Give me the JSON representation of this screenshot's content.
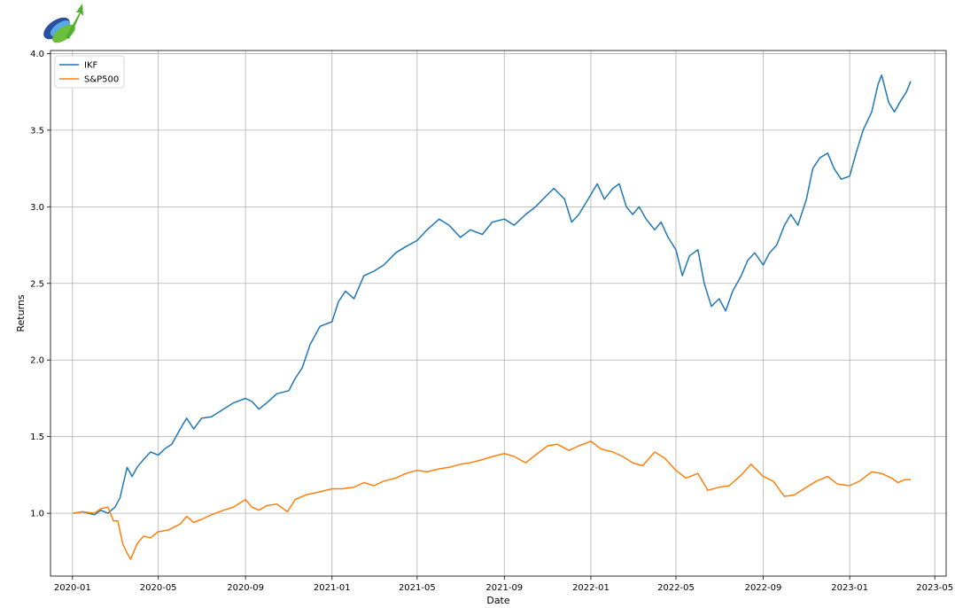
{
  "chart_data": {
    "type": "line",
    "xlabel": "Date",
    "ylabel": "Returns",
    "xlim": [
      "2019-12-01",
      "2023-05-17"
    ],
    "ylim": [
      0.59,
      4.02
    ],
    "x_ticks": [
      "2020-01",
      "2020-05",
      "2020-09",
      "2021-01",
      "2021-05",
      "2021-09",
      "2022-01",
      "2022-05",
      "2022-09",
      "2023-01",
      "2023-05"
    ],
    "y_ticks": [
      "1.0",
      "1.5",
      "2.0",
      "2.5",
      "3.0",
      "3.5",
      "4.0"
    ],
    "grid": true,
    "legend_position": "top-left",
    "series": [
      {
        "name": "IKF",
        "color": "#1f77b4",
        "points": [
          [
            "2020-01-02",
            1.0
          ],
          [
            "2020-01-15",
            1.01
          ],
          [
            "2020-02-01",
            0.99
          ],
          [
            "2020-02-10",
            1.02
          ],
          [
            "2020-02-20",
            1.0
          ],
          [
            "2020-03-01",
            1.04
          ],
          [
            "2020-03-08",
            1.1
          ],
          [
            "2020-03-12",
            1.18
          ],
          [
            "2020-03-18",
            1.3
          ],
          [
            "2020-03-25",
            1.24
          ],
          [
            "2020-04-01",
            1.3
          ],
          [
            "2020-04-10",
            1.35
          ],
          [
            "2020-04-20",
            1.4
          ],
          [
            "2020-05-01",
            1.38
          ],
          [
            "2020-05-10",
            1.42
          ],
          [
            "2020-05-20",
            1.45
          ],
          [
            "2020-06-01",
            1.55
          ],
          [
            "2020-06-10",
            1.62
          ],
          [
            "2020-06-20",
            1.55
          ],
          [
            "2020-07-01",
            1.62
          ],
          [
            "2020-07-15",
            1.63
          ],
          [
            "2020-08-01",
            1.68
          ],
          [
            "2020-08-15",
            1.72
          ],
          [
            "2020-09-01",
            1.75
          ],
          [
            "2020-09-10",
            1.73
          ],
          [
            "2020-09-20",
            1.68
          ],
          [
            "2020-10-01",
            1.72
          ],
          [
            "2020-10-15",
            1.78
          ],
          [
            "2020-11-01",
            1.8
          ],
          [
            "2020-11-10",
            1.88
          ],
          [
            "2020-11-20",
            1.95
          ],
          [
            "2020-12-01",
            2.1
          ],
          [
            "2020-12-15",
            2.22
          ],
          [
            "2021-01-01",
            2.25
          ],
          [
            "2021-01-10",
            2.38
          ],
          [
            "2021-01-20",
            2.45
          ],
          [
            "2021-02-01",
            2.4
          ],
          [
            "2021-02-15",
            2.55
          ],
          [
            "2021-03-01",
            2.58
          ],
          [
            "2021-03-15",
            2.62
          ],
          [
            "2021-04-01",
            2.7
          ],
          [
            "2021-04-15",
            2.74
          ],
          [
            "2021-05-01",
            2.78
          ],
          [
            "2021-05-15",
            2.85
          ],
          [
            "2021-06-01",
            2.92
          ],
          [
            "2021-06-15",
            2.88
          ],
          [
            "2021-07-01",
            2.8
          ],
          [
            "2021-07-15",
            2.85
          ],
          [
            "2021-08-01",
            2.82
          ],
          [
            "2021-08-15",
            2.9
          ],
          [
            "2021-09-01",
            2.92
          ],
          [
            "2021-09-15",
            2.88
          ],
          [
            "2021-10-01",
            2.95
          ],
          [
            "2021-10-15",
            3.0
          ],
          [
            "2021-11-01",
            3.08
          ],
          [
            "2021-11-10",
            3.12
          ],
          [
            "2021-11-25",
            3.05
          ],
          [
            "2021-12-05",
            2.9
          ],
          [
            "2021-12-15",
            2.95
          ],
          [
            "2022-01-01",
            3.08
          ],
          [
            "2022-01-10",
            3.15
          ],
          [
            "2022-01-20",
            3.05
          ],
          [
            "2022-02-01",
            3.12
          ],
          [
            "2022-02-10",
            3.15
          ],
          [
            "2022-02-20",
            3.0
          ],
          [
            "2022-03-01",
            2.95
          ],
          [
            "2022-03-10",
            3.0
          ],
          [
            "2022-03-20",
            2.92
          ],
          [
            "2022-04-01",
            2.85
          ],
          [
            "2022-04-10",
            2.9
          ],
          [
            "2022-04-20",
            2.8
          ],
          [
            "2022-05-01",
            2.72
          ],
          [
            "2022-05-10",
            2.55
          ],
          [
            "2022-05-20",
            2.68
          ],
          [
            "2022-06-01",
            2.72
          ],
          [
            "2022-06-10",
            2.5
          ],
          [
            "2022-06-20",
            2.35
          ],
          [
            "2022-07-01",
            2.4
          ],
          [
            "2022-07-10",
            2.32
          ],
          [
            "2022-07-20",
            2.45
          ],
          [
            "2022-08-01",
            2.55
          ],
          [
            "2022-08-10",
            2.65
          ],
          [
            "2022-08-20",
            2.7
          ],
          [
            "2022-09-01",
            2.62
          ],
          [
            "2022-09-10",
            2.7
          ],
          [
            "2022-09-20",
            2.75
          ],
          [
            "2022-10-01",
            2.88
          ],
          [
            "2022-10-10",
            2.95
          ],
          [
            "2022-10-20",
            2.88
          ],
          [
            "2022-11-01",
            3.05
          ],
          [
            "2022-11-10",
            3.25
          ],
          [
            "2022-11-20",
            3.32
          ],
          [
            "2022-12-01",
            3.35
          ],
          [
            "2022-12-10",
            3.25
          ],
          [
            "2022-12-20",
            3.18
          ],
          [
            "2023-01-01",
            3.2
          ],
          [
            "2023-01-10",
            3.35
          ],
          [
            "2023-01-20",
            3.5
          ],
          [
            "2023-02-01",
            3.62
          ],
          [
            "2023-02-10",
            3.8
          ],
          [
            "2023-02-15",
            3.86
          ],
          [
            "2023-02-25",
            3.68
          ],
          [
            "2023-03-05",
            3.62
          ],
          [
            "2023-03-15",
            3.7
          ],
          [
            "2023-03-22",
            3.75
          ],
          [
            "2023-03-28",
            3.82
          ]
        ]
      },
      {
        "name": "S&P500",
        "color": "#ff7f0e",
        "points": [
          [
            "2020-01-02",
            1.0
          ],
          [
            "2020-01-15",
            1.01
          ],
          [
            "2020-02-01",
            1.0
          ],
          [
            "2020-02-10",
            1.03
          ],
          [
            "2020-02-20",
            1.04
          ],
          [
            "2020-02-28",
            0.95
          ],
          [
            "2020-03-05",
            0.95
          ],
          [
            "2020-03-12",
            0.8
          ],
          [
            "2020-03-18",
            0.74
          ],
          [
            "2020-03-23",
            0.7
          ],
          [
            "2020-04-01",
            0.8
          ],
          [
            "2020-04-10",
            0.85
          ],
          [
            "2020-04-20",
            0.84
          ],
          [
            "2020-05-01",
            0.88
          ],
          [
            "2020-05-15",
            0.89
          ],
          [
            "2020-06-01",
            0.93
          ],
          [
            "2020-06-10",
            0.98
          ],
          [
            "2020-06-20",
            0.94
          ],
          [
            "2020-07-01",
            0.96
          ],
          [
            "2020-07-15",
            0.99
          ],
          [
            "2020-08-01",
            1.02
          ],
          [
            "2020-08-15",
            1.04
          ],
          [
            "2020-09-01",
            1.09
          ],
          [
            "2020-09-10",
            1.04
          ],
          [
            "2020-09-20",
            1.02
          ],
          [
            "2020-10-01",
            1.05
          ],
          [
            "2020-10-15",
            1.06
          ],
          [
            "2020-10-30",
            1.01
          ],
          [
            "2020-11-10",
            1.09
          ],
          [
            "2020-11-25",
            1.12
          ],
          [
            "2020-12-15",
            1.14
          ],
          [
            "2021-01-01",
            1.16
          ],
          [
            "2021-01-15",
            1.16
          ],
          [
            "2021-02-01",
            1.17
          ],
          [
            "2021-02-15",
            1.2
          ],
          [
            "2021-03-01",
            1.18
          ],
          [
            "2021-03-15",
            1.21
          ],
          [
            "2021-04-01",
            1.23
          ],
          [
            "2021-04-15",
            1.26
          ],
          [
            "2021-05-01",
            1.28
          ],
          [
            "2021-05-15",
            1.27
          ],
          [
            "2021-06-01",
            1.29
          ],
          [
            "2021-06-15",
            1.3
          ],
          [
            "2021-07-01",
            1.32
          ],
          [
            "2021-07-15",
            1.33
          ],
          [
            "2021-08-01",
            1.35
          ],
          [
            "2021-08-15",
            1.37
          ],
          [
            "2021-09-01",
            1.39
          ],
          [
            "2021-09-15",
            1.37
          ],
          [
            "2021-10-01",
            1.33
          ],
          [
            "2021-10-15",
            1.38
          ],
          [
            "2021-11-01",
            1.44
          ],
          [
            "2021-11-15",
            1.45
          ],
          [
            "2021-12-01",
            1.41
          ],
          [
            "2021-12-15",
            1.44
          ],
          [
            "2022-01-01",
            1.47
          ],
          [
            "2022-01-15",
            1.42
          ],
          [
            "2022-02-01",
            1.4
          ],
          [
            "2022-02-15",
            1.37
          ],
          [
            "2022-03-01",
            1.33
          ],
          [
            "2022-03-15",
            1.31
          ],
          [
            "2022-04-01",
            1.4
          ],
          [
            "2022-04-15",
            1.36
          ],
          [
            "2022-05-01",
            1.28
          ],
          [
            "2022-05-15",
            1.23
          ],
          [
            "2022-06-01",
            1.26
          ],
          [
            "2022-06-15",
            1.15
          ],
          [
            "2022-07-01",
            1.17
          ],
          [
            "2022-07-15",
            1.18
          ],
          [
            "2022-08-01",
            1.25
          ],
          [
            "2022-08-15",
            1.32
          ],
          [
            "2022-09-01",
            1.24
          ],
          [
            "2022-09-15",
            1.21
          ],
          [
            "2022-10-01",
            1.11
          ],
          [
            "2022-10-15",
            1.12
          ],
          [
            "2022-11-01",
            1.17
          ],
          [
            "2022-11-15",
            1.21
          ],
          [
            "2022-12-01",
            1.24
          ],
          [
            "2022-12-15",
            1.19
          ],
          [
            "2023-01-01",
            1.18
          ],
          [
            "2023-01-15",
            1.21
          ],
          [
            "2023-02-01",
            1.27
          ],
          [
            "2023-02-15",
            1.26
          ],
          [
            "2023-03-01",
            1.23
          ],
          [
            "2023-03-10",
            1.2
          ],
          [
            "2023-03-20",
            1.22
          ],
          [
            "2023-03-28",
            1.22
          ]
        ]
      }
    ]
  }
}
